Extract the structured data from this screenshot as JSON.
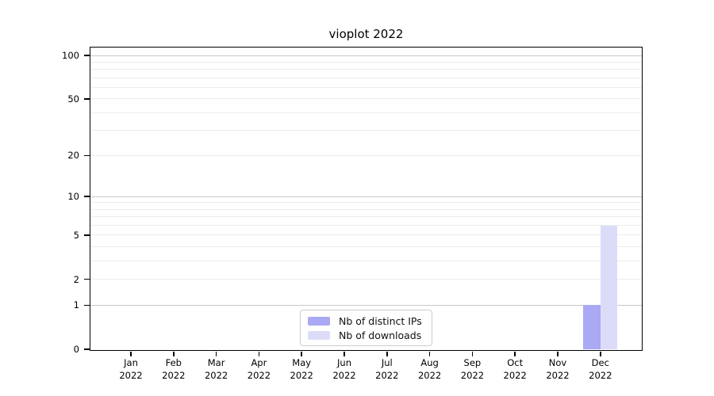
{
  "chart_data": {
    "type": "bar",
    "title": "vioplot 2022",
    "categories": [
      {
        "line1": "Jan",
        "line2": "2022"
      },
      {
        "line1": "Feb",
        "line2": "2022"
      },
      {
        "line1": "Mar",
        "line2": "2022"
      },
      {
        "line1": "Apr",
        "line2": "2022"
      },
      {
        "line1": "May",
        "line2": "2022"
      },
      {
        "line1": "Jun",
        "line2": "2022"
      },
      {
        "line1": "Jul",
        "line2": "2022"
      },
      {
        "line1": "Aug",
        "line2": "2022"
      },
      {
        "line1": "Sep",
        "line2": "2022"
      },
      {
        "line1": "Oct",
        "line2": "2022"
      },
      {
        "line1": "Nov",
        "line2": "2022"
      },
      {
        "line1": "Dec",
        "line2": "2022"
      }
    ],
    "series": [
      {
        "name": "Nb of distinct IPs",
        "color": "#a9a9f4",
        "values": [
          0,
          0,
          0,
          0,
          0,
          0,
          0,
          0,
          0,
          0,
          0,
          1
        ]
      },
      {
        "name": "Nb of downloads",
        "color": "#dcdcf9",
        "values": [
          0,
          0,
          0,
          0,
          0,
          0,
          0,
          0,
          0,
          0,
          0,
          6
        ]
      }
    ],
    "xlabel": "",
    "ylabel": "",
    "ylim": [
      0,
      100
    ],
    "y_scale": "log1p",
    "y_ticks": [
      0,
      1,
      2,
      5,
      10,
      20,
      50,
      100
    ],
    "grid": {
      "minor_values": [
        2,
        3,
        4,
        5,
        6,
        7,
        8,
        9,
        20,
        30,
        40,
        50,
        60,
        70,
        80,
        90
      ],
      "major_values": [
        1,
        10,
        100
      ],
      "minor_color": "#ececec",
      "major_color": "#c9c9c9"
    },
    "legend": {
      "position": "bottom-center"
    },
    "axis_color": "#000000",
    "background_color": "#ffffff"
  }
}
